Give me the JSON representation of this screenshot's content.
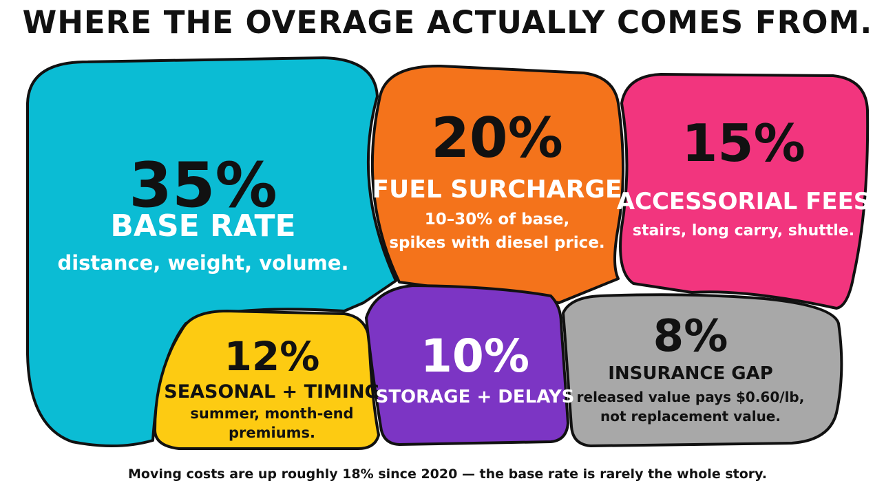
{
  "title": "WHERE THE OVERAGE ACTUALLY COMES FROM.",
  "footer": "Moving costs are up roughly 18% since 2020 — the base rate is rarely the whole story.",
  "chart_data": {
    "type": "treemap",
    "unit": "%",
    "segments": [
      {
        "id": "base",
        "pct": "35%",
        "value": 35,
        "label": "BASE RATE",
        "desc": [
          "distance, weight, volume."
        ],
        "color": "#0BBCD4",
        "text_color": "#ffffff",
        "pct_color": "#111111"
      },
      {
        "id": "fuel",
        "pct": "20%",
        "value": 20,
        "label": "FUEL SURCHARGE",
        "desc": [
          "10–30% of base,",
          "spikes with diesel price."
        ],
        "color": "#F4731B",
        "text_color": "#ffffff",
        "pct_color": "#111111"
      },
      {
        "id": "accessorial",
        "pct": "15%",
        "value": 15,
        "label": "ACCESSORIAL FEES",
        "desc": [
          "stairs, long carry, shuttle."
        ],
        "color": "#F2357E",
        "text_color": "#ffffff",
        "pct_color": "#111111"
      },
      {
        "id": "seasonal",
        "pct": "12%",
        "value": 12,
        "label": "SEASONAL + TIMING",
        "desc": [
          "summer, month-end",
          "premiums."
        ],
        "color": "#FDCB12",
        "text_color": "#111111",
        "pct_color": "#111111"
      },
      {
        "id": "storage",
        "pct": "10%",
        "value": 10,
        "label": "STORAGE + DELAYS",
        "desc": [],
        "color": "#7C35C4",
        "text_color": "#ffffff",
        "pct_color": "#ffffff"
      },
      {
        "id": "insurance",
        "pct": "8%",
        "value": 8,
        "label": "INSURANCE GAP",
        "desc": [
          "released value pays $0.60/lb,",
          "not replacement value."
        ],
        "color": "#A8A8A8",
        "text_color": "#111111",
        "pct_color": "#111111"
      }
    ]
  }
}
